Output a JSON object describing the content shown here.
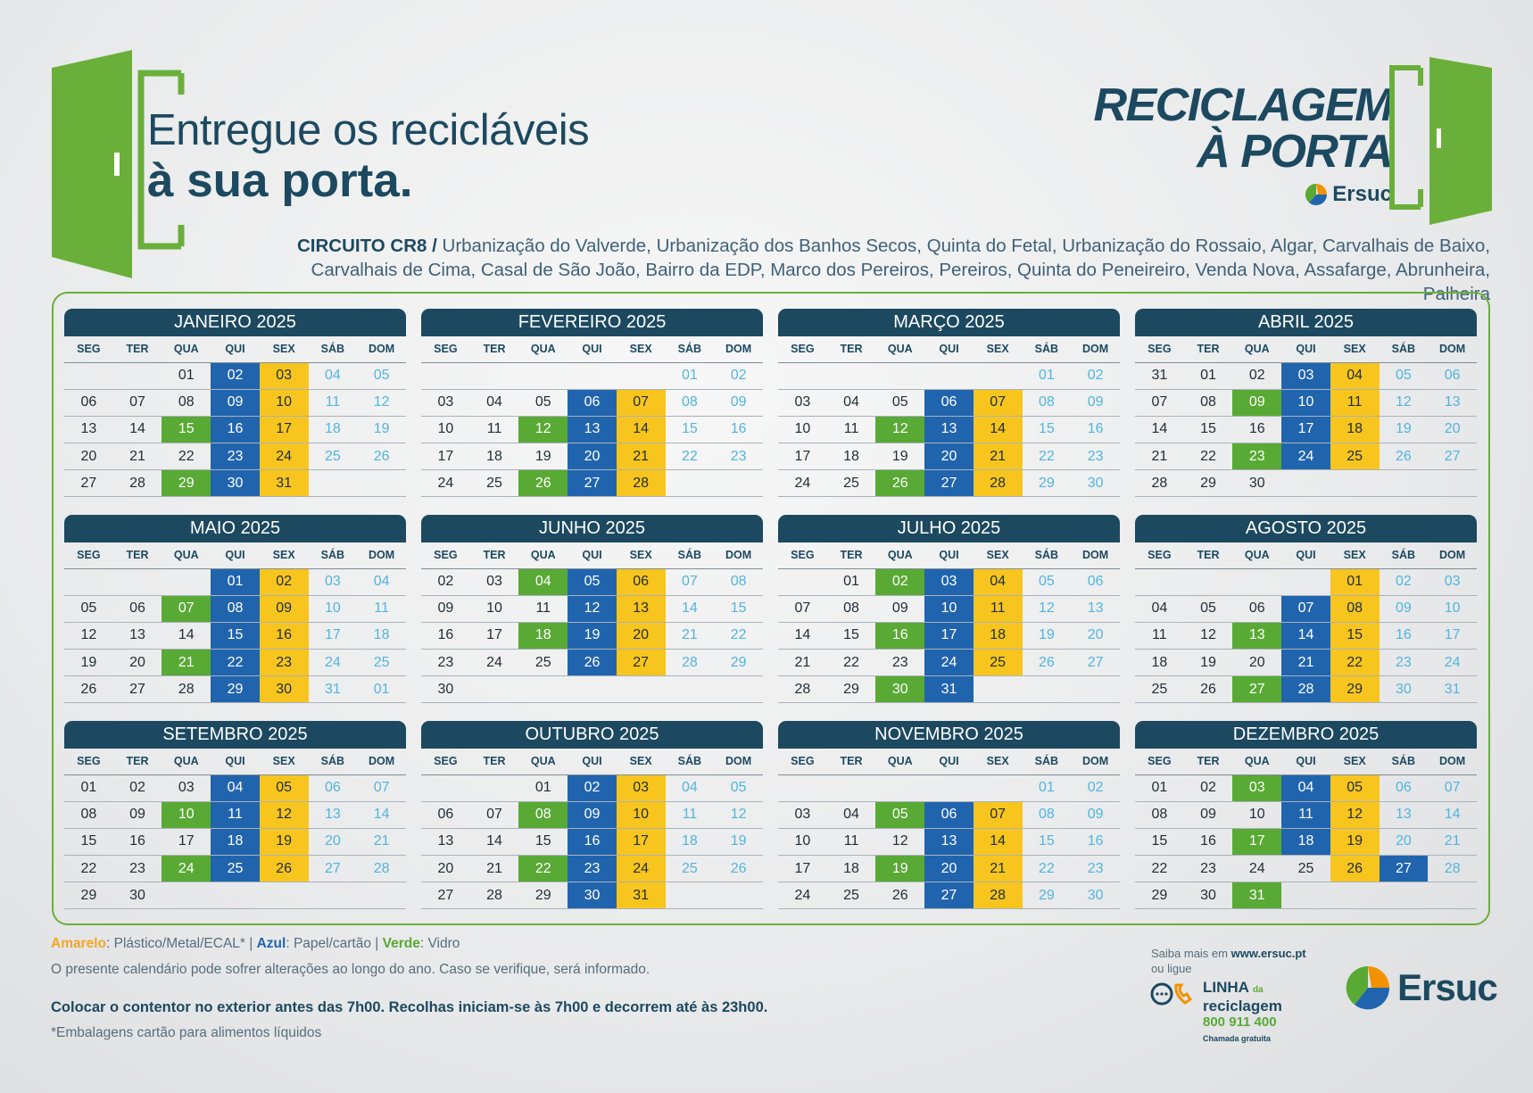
{
  "headline": {
    "line1": "Entregue os recicláveis",
    "line2": "à sua porta."
  },
  "brand": {
    "line1": "RECICLAGEM",
    "line2": "À PORTA",
    "logo_text": "Ersuc"
  },
  "circuit": {
    "code": "CIRCUITO CR8 /",
    "line1": " Urbanização do Valverde, Urbanização dos Banhos Secos, Quinta do Fetal, Urbanização do Rossaio, Algar, Carvalhais de Baixo,",
    "line2": "Carvalhais de Cima, Casal de São João, Bairro da EDP, Marco dos Pereiros, Pereiros, Quinta do Peneireiro, Venda Nova, Assafarge, Abrunheira, Palheira"
  },
  "weekdays": [
    "SEG",
    "TER",
    "QUA",
    "QUI",
    "SEX",
    "SÁB",
    "DOM"
  ],
  "months": [
    {
      "title": "JANEIRO 2025",
      "rows": [
        [
          "",
          "",
          "01",
          "02b",
          "03y",
          "04w",
          "05w"
        ],
        [
          "06",
          "07",
          "08",
          "09b",
          "10y",
          "11w",
          "12w"
        ],
        [
          "13",
          "14",
          "15g",
          "16b",
          "17y",
          "18w",
          "19w"
        ],
        [
          "20",
          "21",
          "22",
          "23b",
          "24y",
          "25w",
          "26w"
        ],
        [
          "27",
          "28",
          "29g",
          "30b",
          "31y",
          "",
          ""
        ]
      ]
    },
    {
      "title": "FEVEREIRO 2025",
      "rows": [
        [
          "",
          "",
          "",
          "",
          "",
          "01w",
          "02w"
        ],
        [
          "03",
          "04",
          "05",
          "06b",
          "07y",
          "08w",
          "09w"
        ],
        [
          "10",
          "11",
          "12g",
          "13b",
          "14y",
          "15w",
          "16w"
        ],
        [
          "17",
          "18",
          "19",
          "20b",
          "21y",
          "22w",
          "23w"
        ],
        [
          "24",
          "25",
          "26g",
          "27b",
          "28y",
          "",
          ""
        ]
      ]
    },
    {
      "title": "MARÇO 2025",
      "rows": [
        [
          "",
          "",
          "",
          "",
          "",
          "01w",
          "02w"
        ],
        [
          "03",
          "04",
          "05",
          "06b",
          "07y",
          "08w",
          "09w"
        ],
        [
          "10",
          "11",
          "12g",
          "13b",
          "14y",
          "15w",
          "16w"
        ],
        [
          "17",
          "18",
          "19",
          "20b",
          "21y",
          "22w",
          "23w"
        ],
        [
          "24",
          "25",
          "26g",
          "27b",
          "28y",
          "29w",
          "30w"
        ]
      ]
    },
    {
      "title": "ABRIL 2025",
      "rows": [
        [
          "31",
          "01",
          "02",
          "03b",
          "04y",
          "05w",
          "06w"
        ],
        [
          "07",
          "08",
          "09g",
          "10b",
          "11y",
          "12w",
          "13w"
        ],
        [
          "14",
          "15",
          "16",
          "17b",
          "18y",
          "19w",
          "20w"
        ],
        [
          "21",
          "22",
          "23g",
          "24b",
          "25y",
          "26w",
          "27w"
        ],
        [
          "28",
          "29",
          "30",
          "",
          "",
          "",
          ""
        ]
      ]
    },
    {
      "title": "MAIO 2025",
      "rows": [
        [
          "",
          "",
          "",
          "01b",
          "02y",
          "03w",
          "04w"
        ],
        [
          "05",
          "06",
          "07g",
          "08b",
          "09y",
          "10w",
          "11w"
        ],
        [
          "12",
          "13",
          "14",
          "15b",
          "16y",
          "17w",
          "18w"
        ],
        [
          "19",
          "20",
          "21g",
          "22b",
          "23y",
          "24w",
          "25w"
        ],
        [
          "26",
          "27",
          "28",
          "29b",
          "30y",
          "31w",
          "01w"
        ]
      ]
    },
    {
      "title": "JUNHO 2025",
      "rows": [
        [
          "02",
          "03",
          "04g",
          "05b",
          "06y",
          "07w",
          "08w"
        ],
        [
          "09",
          "10",
          "11",
          "12b",
          "13y",
          "14w",
          "15w"
        ],
        [
          "16",
          "17",
          "18g",
          "19b",
          "20y",
          "21w",
          "22w"
        ],
        [
          "23",
          "24",
          "25",
          "26b",
          "27y",
          "28w",
          "29w"
        ],
        [
          "30",
          "",
          "",
          "",
          "",
          "",
          ""
        ]
      ]
    },
    {
      "title": "JULHO 2025",
      "rows": [
        [
          "",
          "01",
          "02g",
          "03b",
          "04y",
          "05w",
          "06w"
        ],
        [
          "07",
          "08",
          "09",
          "10b",
          "11y",
          "12w",
          "13w"
        ],
        [
          "14",
          "15",
          "16g",
          "17b",
          "18y",
          "19w",
          "20w"
        ],
        [
          "21",
          "22",
          "23",
          "24b",
          "25y",
          "26w",
          "27w"
        ],
        [
          "28",
          "29",
          "30g",
          "31b",
          "",
          "",
          ""
        ]
      ]
    },
    {
      "title": "AGOSTO 2025",
      "rows": [
        [
          "",
          "",
          "",
          "",
          "01y",
          "02w",
          "03w"
        ],
        [
          "04",
          "05",
          "06",
          "07b",
          "08y",
          "09w",
          "10w"
        ],
        [
          "11",
          "12",
          "13g",
          "14b",
          "15y",
          "16w",
          "17w"
        ],
        [
          "18",
          "19",
          "20",
          "21b",
          "22y",
          "23w",
          "24w"
        ],
        [
          "25",
          "26",
          "27g",
          "28b",
          "29y",
          "30w",
          "31w"
        ]
      ]
    },
    {
      "title": "SETEMBRO 2025",
      "rows": [
        [
          "01",
          "02",
          "03",
          "04b",
          "05y",
          "06w",
          "07w"
        ],
        [
          "08",
          "09",
          "10g",
          "11b",
          "12y",
          "13w",
          "14w"
        ],
        [
          "15",
          "16",
          "17",
          "18b",
          "19y",
          "20w",
          "21w"
        ],
        [
          "22",
          "23",
          "24g",
          "25b",
          "26y",
          "27w",
          "28w"
        ],
        [
          "29",
          "30",
          "",
          "",
          "",
          "",
          ""
        ]
      ]
    },
    {
      "title": "OUTUBRO 2025",
      "rows": [
        [
          "",
          "",
          "01",
          "02b",
          "03y",
          "04w",
          "05w"
        ],
        [
          "06",
          "07",
          "08g",
          "09b",
          "10y",
          "11w",
          "12w"
        ],
        [
          "13",
          "14",
          "15",
          "16b",
          "17y",
          "18w",
          "19w"
        ],
        [
          "20",
          "21",
          "22g",
          "23b",
          "24y",
          "25w",
          "26w"
        ],
        [
          "27",
          "28",
          "29",
          "30b",
          "31y",
          "",
          ""
        ]
      ]
    },
    {
      "title": "NOVEMBRO 2025",
      "rows": [
        [
          "",
          "",
          "",
          "",
          "",
          "01w",
          "02w"
        ],
        [
          "03",
          "04",
          "05g",
          "06b",
          "07y",
          "08w",
          "09w"
        ],
        [
          "10",
          "11",
          "12",
          "13b",
          "14y",
          "15w",
          "16w"
        ],
        [
          "17",
          "18",
          "19g",
          "20b",
          "21y",
          "22w",
          "23w"
        ],
        [
          "24",
          "25",
          "26",
          "27b",
          "28y",
          "29w",
          "30w"
        ]
      ]
    },
    {
      "title": "DEZEMBRO 2025",
      "rows": [
        [
          "01",
          "02",
          "03g",
          "04b",
          "05y",
          "06w",
          "07w"
        ],
        [
          "08",
          "09",
          "10",
          "11b",
          "12y",
          "13w",
          "14w"
        ],
        [
          "15",
          "16",
          "17g",
          "18b",
          "19y",
          "20w",
          "21w"
        ],
        [
          "22",
          "23",
          "24",
          "25",
          "26y",
          "27b",
          "28w"
        ],
        [
          "29",
          "30",
          "31g",
          "",
          "",
          "",
          ""
        ]
      ]
    }
  ],
  "legend": {
    "yellow_label": "Amarelo",
    "yellow_text": ": Plástico/Metal/ECAL* |",
    "blue_label": "Azul",
    "blue_text": ": Papel/cartão  |",
    "green_label": "Verde",
    "green_text": ": Vidro"
  },
  "notes": {
    "change": "O presente calendário pode sofrer alterações ao longo do ano. Caso se verifique, será informado.",
    "instructions": "Colocar o contentor no exterior antes das 7h00. Recolhas iniciam-se às 7h00 e decorrem até às 23h00.",
    "footnote": "*Embalagens cartão para alimentos líquidos"
  },
  "contact": {
    "saiba_prefix": "Saiba mais em ",
    "website": "www.ersuc.pt",
    "ou_ligue": "ou ligue",
    "linha": "LINHA",
    "da": "da",
    "reciclagem": "reciclagem",
    "phone": "800 911 400",
    "chamada": "Chamada gratuita"
  },
  "footer_logo_text": "Ersuc",
  "colors": {
    "yellow": "#f7c51e",
    "blue": "#2164ae",
    "green": "#59a935",
    "navy": "#1c4960"
  }
}
